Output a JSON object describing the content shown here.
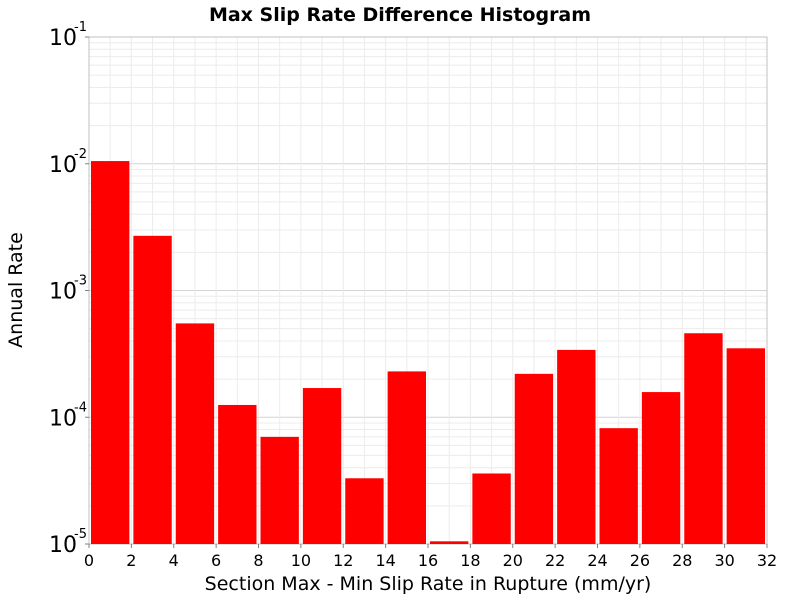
{
  "chart_data": {
    "type": "bar",
    "title": "Max Slip Rate Difference Histogram",
    "xlabel": "Section Max - Min Slip Rate in Rupture (mm/yr)",
    "ylabel": "Annual Rate",
    "xlim": [
      0,
      32
    ],
    "ylim": [
      1e-05,
      0.1
    ],
    "yscale": "log",
    "grid": true,
    "bar_color": "#ff0000",
    "bin_width": 2,
    "x": [
      1,
      3,
      5,
      7,
      9,
      11,
      13,
      15,
      17,
      19,
      21,
      23,
      25,
      27,
      29,
      31
    ],
    "values": [
      0.0105,
      0.0027,
      0.00055,
      0.000125,
      7e-05,
      0.00017,
      3.3e-05,
      0.00023,
      1.05e-05,
      3.6e-05,
      0.00022,
      0.00034,
      8.2e-05,
      0.000158,
      0.00046,
      0.00035
    ],
    "xticks": [
      "0",
      "2",
      "4",
      "6",
      "8",
      "10",
      "12",
      "14",
      "16",
      "18",
      "20",
      "22",
      "24",
      "26",
      "28",
      "30",
      "32"
    ],
    "yticks": [
      {
        "base": "10",
        "exp": "-1"
      },
      {
        "base": "10",
        "exp": "-2"
      },
      {
        "base": "10",
        "exp": "-3"
      },
      {
        "base": "10",
        "exp": "-4"
      },
      {
        "base": "10",
        "exp": "-5"
      }
    ]
  }
}
